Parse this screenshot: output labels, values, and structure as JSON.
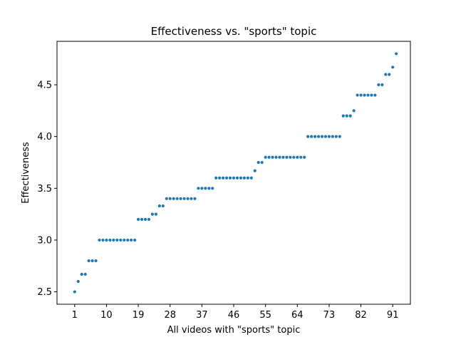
{
  "chart_data": {
    "type": "scatter",
    "title": "Effectiveness vs. \"sports\" topic",
    "xlabel": "All videos with \"sports\" topic",
    "ylabel": "Effectiveness",
    "xlim": [
      -4,
      96
    ],
    "ylim": [
      2.38,
      4.92
    ],
    "xticks": [
      1,
      10,
      19,
      28,
      37,
      46,
      55,
      64,
      73,
      82,
      91
    ],
    "xtick_labels": [
      "1",
      "10",
      "19",
      "28",
      "37",
      "46",
      "55",
      "64",
      "73",
      "82",
      "91"
    ],
    "yticks": [
      2.5,
      3.0,
      3.5,
      4.0,
      4.5
    ],
    "ytick_labels": [
      "2.5",
      "3.0",
      "3.5",
      "4.0",
      "4.5"
    ],
    "grid": false,
    "marker_color": "#1f77b4",
    "series": [
      {
        "x": [
          1,
          2,
          3,
          4,
          5,
          6,
          7,
          8,
          9,
          10,
          11,
          12,
          13,
          14,
          15,
          16,
          17,
          18,
          19,
          20,
          21,
          22,
          23,
          24,
          25,
          26,
          27,
          28,
          29,
          30,
          31,
          32,
          33,
          34,
          35,
          36,
          37,
          38,
          39,
          40,
          41,
          42,
          43,
          44,
          45,
          46,
          47,
          48,
          49,
          50,
          51,
          52,
          53,
          54,
          55,
          56,
          57,
          58,
          59,
          60,
          61,
          62,
          63,
          64,
          65,
          66,
          67,
          68,
          69,
          70,
          71,
          72,
          73,
          74,
          75,
          76,
          77,
          78,
          79,
          80,
          81,
          82,
          83,
          84,
          85,
          86,
          87,
          88,
          89,
          90,
          91,
          92
        ],
        "y": [
          2.5,
          2.6,
          2.67,
          2.67,
          2.8,
          2.8,
          2.8,
          3.0,
          3.0,
          3.0,
          3.0,
          3.0,
          3.0,
          3.0,
          3.0,
          3.0,
          3.0,
          3.0,
          3.2,
          3.2,
          3.2,
          3.2,
          3.25,
          3.25,
          3.33,
          3.33,
          3.4,
          3.4,
          3.4,
          3.4,
          3.4,
          3.4,
          3.4,
          3.4,
          3.4,
          3.5,
          3.5,
          3.5,
          3.5,
          3.5,
          3.6,
          3.6,
          3.6,
          3.6,
          3.6,
          3.6,
          3.6,
          3.6,
          3.6,
          3.6,
          3.6,
          3.67,
          3.75,
          3.75,
          3.8,
          3.8,
          3.8,
          3.8,
          3.8,
          3.8,
          3.8,
          3.8,
          3.8,
          3.8,
          3.8,
          3.8,
          4.0,
          4.0,
          4.0,
          4.0,
          4.0,
          4.0,
          4.0,
          4.0,
          4.0,
          4.0,
          4.2,
          4.2,
          4.2,
          4.25,
          4.4,
          4.4,
          4.4,
          4.4,
          4.4,
          4.4,
          4.5,
          4.5,
          4.6,
          4.6,
          4.67,
          4.8
        ]
      }
    ]
  }
}
